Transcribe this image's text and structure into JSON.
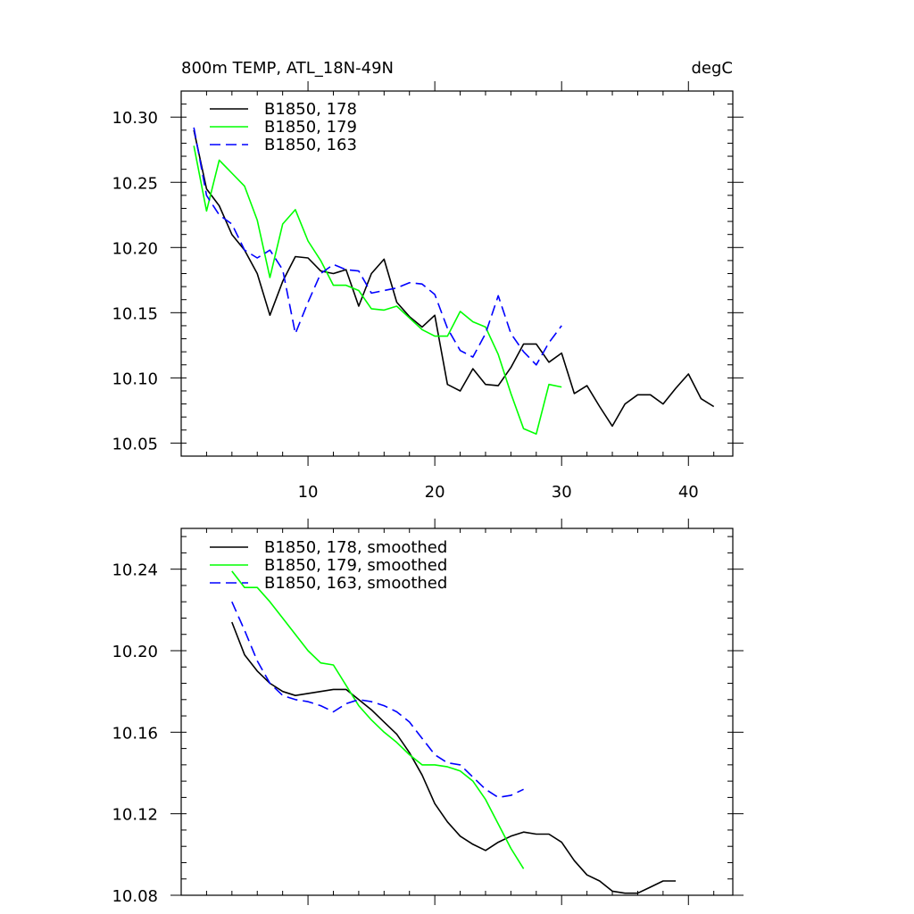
{
  "colors": {
    "s178": "#000000",
    "s179": "#00ff00",
    "s163": "#0000ff"
  },
  "chart_data": [
    {
      "type": "line",
      "title": "800m TEMP, ATL_18N-49N",
      "units": "degC",
      "xlim": [
        0,
        43.5
      ],
      "ylim": [
        10.04,
        10.32
      ],
      "xticks": [
        10,
        20,
        30,
        40
      ],
      "yticks": [
        10.05,
        10.1,
        10.15,
        10.2,
        10.25,
        10.3
      ],
      "ytick_labels": [
        "10.05",
        "10.10",
        "10.15",
        "10.20",
        "10.25",
        "10.30"
      ],
      "legend_position": "top-left",
      "series": [
        {
          "name": "B1850, 178",
          "color": "#000000",
          "dash": "solid",
          "x": [
            1,
            2,
            3,
            4,
            5,
            6,
            7,
            8,
            9,
            10,
            11,
            12,
            13,
            14,
            15,
            16,
            17,
            18,
            19,
            20,
            21,
            22,
            23,
            24,
            25,
            26,
            27,
            28,
            29,
            30,
            31,
            32,
            33,
            34,
            35,
            36,
            37,
            38,
            39,
            40,
            41,
            42
          ],
          "y": [
            10.29,
            10.245,
            10.232,
            10.21,
            10.198,
            10.18,
            10.148,
            10.174,
            10.193,
            10.192,
            10.182,
            10.18,
            10.183,
            10.155,
            10.18,
            10.191,
            10.158,
            10.147,
            10.139,
            10.148,
            10.095,
            10.09,
            10.107,
            10.095,
            10.094,
            10.108,
            10.126,
            10.126,
            10.112,
            10.119,
            10.088,
            10.094,
            10.078,
            10.063,
            10.08,
            10.087,
            10.087,
            10.08,
            10.092,
            10.103,
            10.084,
            10.078
          ]
        },
        {
          "name": "B1850, 179",
          "color": "#00ff00",
          "dash": "solid",
          "x": [
            1,
            2,
            3,
            4,
            5,
            6,
            7,
            8,
            9,
            10,
            11,
            12,
            13,
            14,
            15,
            16,
            17,
            18,
            19,
            20,
            21,
            22,
            23,
            24,
            25,
            26,
            27,
            28,
            29,
            30
          ],
          "y": [
            10.278,
            10.228,
            10.267,
            10.257,
            10.247,
            10.221,
            10.177,
            10.218,
            10.229,
            10.205,
            10.19,
            10.171,
            10.171,
            10.167,
            10.153,
            10.152,
            10.155,
            10.146,
            10.137,
            10.132,
            10.132,
            10.151,
            10.143,
            10.139,
            10.118,
            10.088,
            10.061,
            10.057,
            10.095,
            10.093
          ]
        },
        {
          "name": "B1850, 163",
          "color": "#0000ff",
          "dash": "dashed",
          "x": [
            1,
            2,
            3,
            4,
            5,
            6,
            7,
            8,
            9,
            10,
            11,
            12,
            13,
            14,
            15,
            16,
            17,
            18,
            19,
            20,
            21,
            22,
            23,
            24,
            25,
            26,
            27,
            28,
            29,
            30
          ],
          "y": [
            10.292,
            10.24,
            10.225,
            10.218,
            10.198,
            10.192,
            10.198,
            10.183,
            10.134,
            10.158,
            10.18,
            10.187,
            10.183,
            10.182,
            10.165,
            10.167,
            10.169,
            10.173,
            10.172,
            10.164,
            10.138,
            10.121,
            10.116,
            10.134,
            10.163,
            10.134,
            10.12,
            10.11,
            10.127,
            10.14
          ]
        }
      ]
    },
    {
      "type": "line",
      "xlim": [
        0,
        43.5
      ],
      "ylim": [
        10.08,
        10.26
      ],
      "xticks": [
        10,
        20,
        30,
        40
      ],
      "yticks": [
        10.08,
        10.12,
        10.16,
        10.2,
        10.24
      ],
      "ytick_labels": [
        "10.08",
        "10.12",
        "10.16",
        "10.20",
        "10.24"
      ],
      "legend_position": "top-left",
      "series": [
        {
          "name": "B1850, 178, smoothed",
          "color": "#000000",
          "dash": "solid",
          "x": [
            4,
            5,
            6,
            7,
            8,
            9,
            10,
            11,
            12,
            13,
            14,
            15,
            16,
            17,
            18,
            19,
            20,
            21,
            22,
            23,
            24,
            25,
            26,
            27,
            28,
            29,
            30,
            31,
            32,
            33,
            34,
            35,
            36,
            37,
            38,
            39
          ],
          "y": [
            10.214,
            10.198,
            10.19,
            10.184,
            10.18,
            10.178,
            10.179,
            10.18,
            10.181,
            10.181,
            10.176,
            10.171,
            10.165,
            10.159,
            10.15,
            10.139,
            10.125,
            10.116,
            10.109,
            10.105,
            10.102,
            10.106,
            10.109,
            10.111,
            10.11,
            10.11,
            10.106,
            10.097,
            10.09,
            10.087,
            10.082,
            10.081,
            10.081,
            10.084,
            10.087,
            10.087
          ]
        },
        {
          "name": "B1850, 179, smoothed",
          "color": "#00ff00",
          "dash": "solid",
          "x": [
            4,
            5,
            6,
            7,
            8,
            9,
            10,
            11,
            12,
            13,
            14,
            15,
            16,
            17,
            18,
            19,
            20,
            21,
            22,
            23,
            24,
            25,
            26,
            27
          ],
          "y": [
            10.239,
            10.231,
            10.231,
            10.224,
            10.216,
            10.208,
            10.2,
            10.194,
            10.193,
            10.183,
            10.173,
            10.166,
            10.16,
            10.155,
            10.149,
            10.144,
            10.144,
            10.143,
            10.141,
            10.136,
            10.127,
            10.115,
            10.103,
            10.093
          ]
        },
        {
          "name": "B1850, 163, smoothed",
          "color": "#0000ff",
          "dash": "dashed",
          "x": [
            4,
            5,
            6,
            7,
            8,
            9,
            10,
            11,
            12,
            13,
            14,
            15,
            16,
            17,
            18,
            19,
            20,
            21,
            22,
            23,
            24,
            25,
            26,
            27
          ],
          "y": [
            10.224,
            10.21,
            10.195,
            10.184,
            10.178,
            10.176,
            10.175,
            10.173,
            10.17,
            10.174,
            10.176,
            10.175,
            10.173,
            10.17,
            10.165,
            10.157,
            10.149,
            10.145,
            10.144,
            10.138,
            10.132,
            10.128,
            10.129,
            10.132
          ]
        }
      ]
    }
  ]
}
